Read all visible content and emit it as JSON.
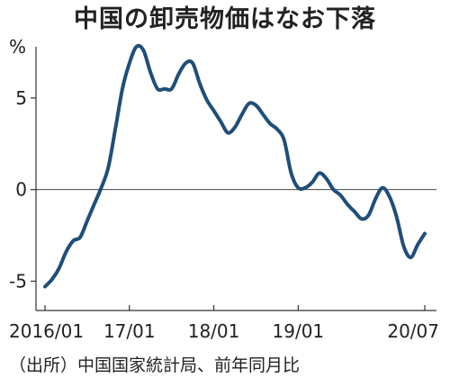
{
  "title": "中国の卸売物価はなお下落",
  "unit": "%",
  "source": "（出所）中国国家統計局、前年同月比",
  "chart_data": {
    "type": "line",
    "title": "中国の卸売物価はなお下落",
    "xlabel": "",
    "ylabel": "%",
    "x_tick_labels": [
      "2016/01",
      "17/01",
      "18/01",
      "19/01",
      "20/07"
    ],
    "y_tick_labels": [
      "5",
      "0",
      "-5"
    ],
    "ylim": [
      -6.6,
      7.4
    ],
    "series_color": "#1f4e79",
    "zero_line": true,
    "grid": false,
    "series": [
      {
        "x": [
          "2016-01",
          "2016-02",
          "2016-03",
          "2016-04",
          "2016-05",
          "2016-06",
          "2016-07",
          "2016-08",
          "2016-09",
          "2016-10",
          "2016-11",
          "2016-12",
          "2017-01",
          "2017-02",
          "2017-03",
          "2017-04",
          "2017-05",
          "2017-06",
          "2017-07",
          "2017-08",
          "2017-09",
          "2017-10",
          "2017-11",
          "2017-12",
          "2018-01",
          "2018-02",
          "2018-03",
          "2018-04",
          "2018-05",
          "2018-06",
          "2018-07",
          "2018-08",
          "2018-09",
          "2018-10",
          "2018-11",
          "2018-12",
          "2019-01",
          "2019-02",
          "2019-03",
          "2019-04",
          "2019-05",
          "2019-06",
          "2019-07",
          "2019-08",
          "2019-09",
          "2019-10",
          "2019-11",
          "2019-12",
          "2020-01",
          "2020-02",
          "2020-03",
          "2020-04",
          "2020-05",
          "2020-06",
          "2020-07"
        ],
        "values": [
          -5.3,
          -4.9,
          -4.3,
          -3.4,
          -2.8,
          -2.6,
          -1.7,
          -0.8,
          0.1,
          1.2,
          3.3,
          5.5,
          6.9,
          7.8,
          7.6,
          6.4,
          5.5,
          5.5,
          5.5,
          6.3,
          6.9,
          6.9,
          5.8,
          4.9,
          4.3,
          3.7,
          3.1,
          3.4,
          4.1,
          4.7,
          4.6,
          4.1,
          3.6,
          3.3,
          2.7,
          0.9,
          0.1,
          0.1,
          0.4,
          0.9,
          0.6,
          0.0,
          -0.3,
          -0.8,
          -1.2,
          -1.6,
          -1.4,
          -0.5,
          0.1,
          -0.4,
          -1.5,
          -3.1,
          -3.7,
          -3.0,
          -2.4
        ]
      }
    ]
  }
}
